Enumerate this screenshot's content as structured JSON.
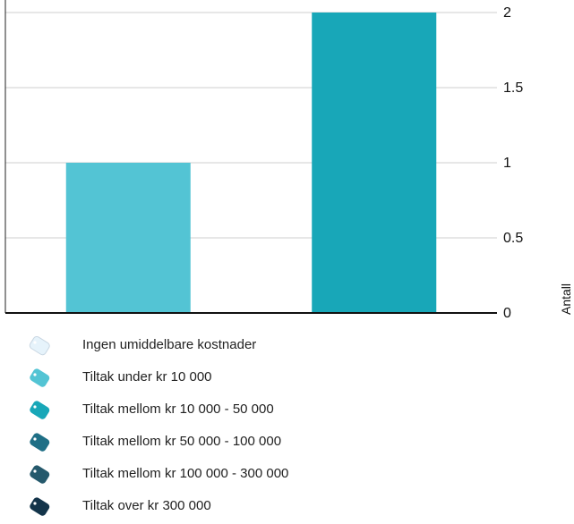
{
  "chart_data": {
    "type": "bar",
    "categories": [
      "Tiltak under kr 10 000",
      "Tiltak mellom kr 10 000 - 50 000"
    ],
    "values": [
      1,
      2
    ],
    "colors": [
      "#53c4d4",
      "#18a7b8"
    ],
    "ylabel": "Antall",
    "ylim": [
      0,
      2
    ],
    "yticks": [
      "0",
      "0.5",
      "1",
      "1.5",
      "2"
    ],
    "ytick_values": [
      0,
      0.5,
      1,
      1.5,
      2
    ],
    "grid": true,
    "y_axis_side": "right",
    "legend_placement": "bottom"
  },
  "legend": [
    {
      "label": "Ingen umiddelbare kostnader",
      "icon": "price-tag-icon",
      "color": "#e6f3fb"
    },
    {
      "label": "Tiltak under kr 10 000",
      "icon": "price-tag-icon",
      "color": "#53c4d4"
    },
    {
      "label": "Tiltak mellom kr 10 000 - 50 000",
      "icon": "price-tag-icon",
      "color": "#18a7b8"
    },
    {
      "label": "Tiltak mellom kr 50 000 - 100 000",
      "icon": "price-tag-icon",
      "color": "#1f6f86"
    },
    {
      "label": "Tiltak mellom kr 100 000 - 300 000",
      "icon": "price-tag-icon",
      "color": "#25596c"
    },
    {
      "label": "Tiltak over kr 300 000",
      "icon": "price-tag-icon",
      "color": "#13344a"
    }
  ]
}
